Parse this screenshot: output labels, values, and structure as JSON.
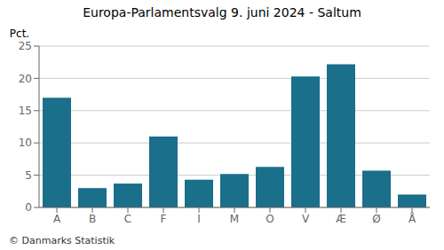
{
  "chart_data": {
    "type": "bar",
    "title": "Europa-Parlamentsvalg 9. juni 2024 - Saltum",
    "categories": [
      "A",
      "B",
      "C",
      "F",
      "I",
      "M",
      "O",
      "V",
      "Æ",
      "Ø",
      "Å"
    ],
    "values": [
      17.0,
      3.0,
      3.7,
      11.0,
      4.3,
      5.2,
      6.3,
      20.3,
      22.2,
      5.7,
      2.0
    ],
    "color": "#1a6f8a",
    "ylabel": "Pct.",
    "ylim": [
      0,
      25
    ],
    "yticks": [
      0,
      5,
      10,
      15,
      20,
      25
    ],
    "grid": true,
    "annotations": [
      "© Danmarks Statistik"
    ]
  }
}
